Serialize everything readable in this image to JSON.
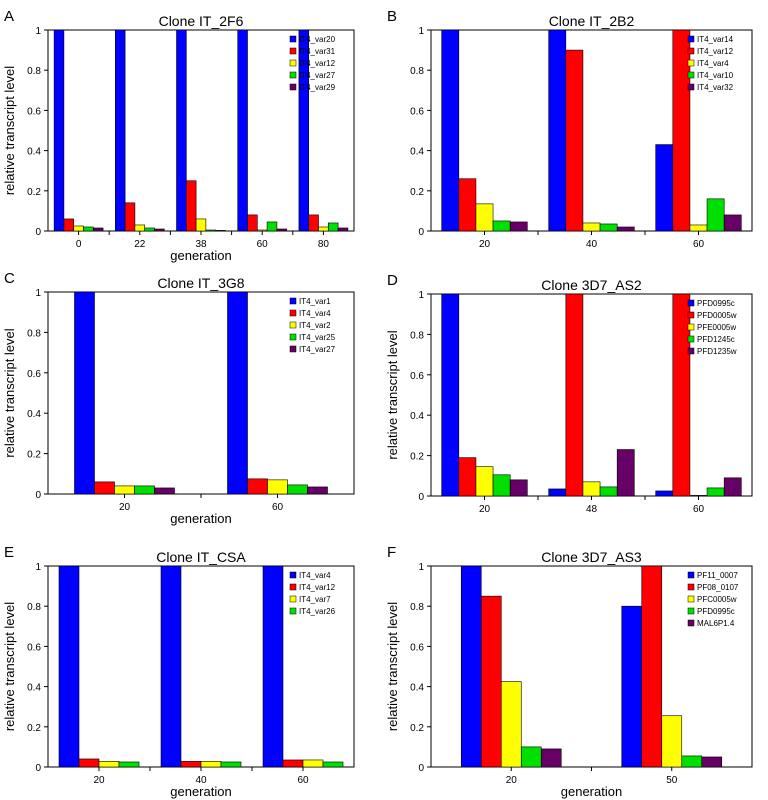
{
  "chart_data": [
    {
      "type": "bar",
      "panel_letter": "A",
      "title": "Clone IT_2F6",
      "xlabel": "generation",
      "ylabel": "relative transcript level",
      "ylim": [
        0,
        1
      ],
      "yticks": [
        "0",
        "0.2",
        "0.4",
        "0.6",
        "0.8",
        "1"
      ],
      "categories": [
        "0",
        "22",
        "38",
        "60",
        "80"
      ],
      "legend_position": "top-right",
      "series": [
        {
          "name": "IT4_var20",
          "color": "#0000ff",
          "values": [
            1.0,
            1.0,
            1.0,
            1.0,
            1.0
          ]
        },
        {
          "name": "IT4_var31",
          "color": "#ff0000",
          "values": [
            0.06,
            0.14,
            0.25,
            0.08,
            0.08
          ]
        },
        {
          "name": "IT4_var12",
          "color": "#ffff00",
          "values": [
            0.025,
            0.03,
            0.06,
            0.005,
            0.02
          ]
        },
        {
          "name": "IT4_var27",
          "color": "#00e000",
          "values": [
            0.02,
            0.015,
            0.005,
            0.045,
            0.04
          ]
        },
        {
          "name": "IT4_var29",
          "color": "#660066",
          "values": [
            0.015,
            0.01,
            0.003,
            0.01,
            0.015
          ]
        }
      ]
    },
    {
      "type": "bar",
      "panel_letter": "B",
      "title": "Clone IT_2B2",
      "xlabel": "",
      "ylabel": "",
      "ylim": [
        0,
        1
      ],
      "yticks": [
        "0",
        "0.2",
        "0.4",
        "0.6",
        "0.8",
        "1"
      ],
      "categories": [
        "20",
        "40",
        "60"
      ],
      "legend_position": "top-right",
      "series": [
        {
          "name": "IT4_var14",
          "color": "#0000ff",
          "values": [
            1.0,
            1.0,
            0.43
          ]
        },
        {
          "name": "IT4_var12",
          "color": "#ff0000",
          "values": [
            0.26,
            0.9,
            1.0
          ]
        },
        {
          "name": "IT4_var4",
          "color": "#ffff00",
          "values": [
            0.135,
            0.04,
            0.03
          ]
        },
        {
          "name": "IT4_var10",
          "color": "#00e000",
          "values": [
            0.05,
            0.035,
            0.16
          ]
        },
        {
          "name": "IT4_var32",
          "color": "#660066",
          "values": [
            0.045,
            0.02,
            0.08
          ]
        }
      ]
    },
    {
      "type": "bar",
      "panel_letter": "C",
      "title": "Clone IT_3G8",
      "xlabel": "generation",
      "ylabel": "relative transcript level",
      "ylim": [
        0,
        1
      ],
      "yticks": [
        "0",
        "0.2",
        "0.4",
        "0.6",
        "0.8",
        "1"
      ],
      "categories": [
        "20",
        "60"
      ],
      "legend_position": "top-right",
      "series": [
        {
          "name": "IT4_var1",
          "color": "#0000ff",
          "values": [
            1.0,
            1.0
          ]
        },
        {
          "name": "IT4_var4",
          "color": "#ff0000",
          "values": [
            0.06,
            0.075
          ]
        },
        {
          "name": "IT4_var2",
          "color": "#ffff00",
          "values": [
            0.04,
            0.07
          ]
        },
        {
          "name": "IT4_var25",
          "color": "#00e000",
          "values": [
            0.04,
            0.045
          ]
        },
        {
          "name": "IT4_var27",
          "color": "#660066",
          "values": [
            0.03,
            0.035
          ]
        }
      ]
    },
    {
      "type": "bar",
      "panel_letter": "D",
      "title": "Clone 3D7_AS2",
      "xlabel": "",
      "ylabel": "relative transcript level",
      "ylim": [
        0,
        1
      ],
      "yticks": [
        "0",
        "0.2",
        "0.4",
        "0.6",
        "0.8",
        "1"
      ],
      "categories": [
        "20",
        "48",
        "60"
      ],
      "legend_position": "top-right",
      "series": [
        {
          "name": "PFD0995c",
          "color": "#0000ff",
          "values": [
            1.0,
            0.035,
            0.025
          ]
        },
        {
          "name": "PFD0005w",
          "color": "#ff0000",
          "values": [
            0.19,
            1.0,
            1.0
          ]
        },
        {
          "name": "PFE0005w",
          "color": "#ffff00",
          "values": [
            0.145,
            0.07,
            0.003
          ]
        },
        {
          "name": "PFD1245c",
          "color": "#00e000",
          "values": [
            0.105,
            0.045,
            0.04
          ]
        },
        {
          "name": "PFD1235w",
          "color": "#660066",
          "values": [
            0.08,
            0.23,
            0.09
          ]
        }
      ]
    },
    {
      "type": "bar",
      "panel_letter": "E",
      "title": "Clone IT_CSA",
      "xlabel": "generation",
      "ylabel": "relative transcript level",
      "ylim": [
        0,
        1
      ],
      "yticks": [
        "0",
        "0.2",
        "0.4",
        "0.6",
        "0.8",
        "1"
      ],
      "categories": [
        "20",
        "40",
        "60"
      ],
      "legend_position": "top-right",
      "series": [
        {
          "name": "IT4_var4",
          "color": "#0000ff",
          "values": [
            1.0,
            1.0,
            1.0
          ]
        },
        {
          "name": "IT4_var12",
          "color": "#ff0000",
          "values": [
            0.04,
            0.028,
            0.035
          ]
        },
        {
          "name": "IT4_var7",
          "color": "#ffff00",
          "values": [
            0.028,
            0.028,
            0.035
          ]
        },
        {
          "name": "IT4_var26",
          "color": "#00e000",
          "values": [
            0.025,
            0.025,
            0.025
          ]
        }
      ]
    },
    {
      "type": "bar",
      "panel_letter": "F",
      "title": "Clone 3D7_AS3",
      "xlabel": "generation",
      "ylabel": "relative transcript level",
      "ylim": [
        0,
        1
      ],
      "yticks": [
        "0",
        "0.2",
        "0.4",
        "0.6",
        "0.8",
        "1"
      ],
      "categories": [
        "20",
        "50"
      ],
      "legend_position": "top-right",
      "series": [
        {
          "name": "PF11_0007",
          "color": "#0000ff",
          "values": [
            1.0,
            0.8
          ]
        },
        {
          "name": "PF08_0107",
          "color": "#ff0000",
          "values": [
            0.85,
            1.0
          ]
        },
        {
          "name": "PFC0005w",
          "color": "#ffff00",
          "values": [
            0.425,
            0.255
          ]
        },
        {
          "name": "PFD0995c",
          "color": "#00e000",
          "values": [
            0.1,
            0.055
          ]
        },
        {
          "name": "MAL6P1.4",
          "color": "#660066",
          "values": [
            0.09,
            0.05
          ]
        }
      ]
    }
  ]
}
